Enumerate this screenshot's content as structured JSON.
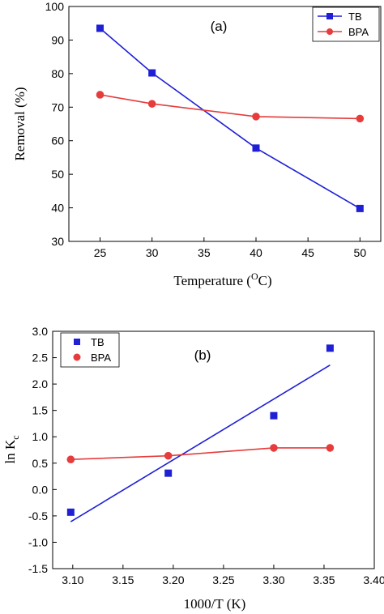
{
  "chart_data": [
    {
      "type": "line",
      "panel_label": "(a)",
      "xlabel": "Temperature (",
      "xlabel_sup": "O",
      "xlabel_suffix": "C)",
      "ylabel": "Removal (%)",
      "xlim": [
        22,
        52
      ],
      "ylim": [
        30,
        100
      ],
      "xticks": [
        25,
        30,
        35,
        40,
        45,
        50
      ],
      "yticks": [
        30,
        40,
        50,
        60,
        70,
        80,
        90,
        100
      ],
      "legend_position": "top-right",
      "series": [
        {
          "name": "TB",
          "color": "#1f1fd6",
          "marker": "square",
          "line": "connect",
          "x": [
            25,
            30,
            40,
            50
          ],
          "y": [
            93.5,
            80.2,
            57.8,
            39.8
          ]
        },
        {
          "name": "BPA",
          "color": "#e63c3c",
          "marker": "circle",
          "line": "smooth",
          "x": [
            25,
            30,
            40,
            50
          ],
          "y": [
            73.7,
            71.0,
            67.2,
            66.6
          ]
        }
      ]
    },
    {
      "type": "scatter",
      "panel_label": "(b)",
      "xlabel": "1000/T (K)",
      "ylabel": "ln K",
      "ylabel_sub": "c",
      "xlim": [
        3.08,
        3.4
      ],
      "ylim": [
        -1.5,
        3.0
      ],
      "xticks": [
        "3.10",
        "3.15",
        "3.20",
        "3.25",
        "3.30",
        "3.35",
        "3.40"
      ],
      "yticks": [
        "-1.5",
        "-1.0",
        "-0.5",
        "0.0",
        "0.5",
        "1.0",
        "1.5",
        "2.0",
        "2.5",
        "3.0"
      ],
      "legend_position": "top-left",
      "series": [
        {
          "name": "TB",
          "color": "#1f1fd6",
          "marker": "square",
          "x": [
            3.098,
            3.195,
            3.3,
            3.356
          ],
          "y": [
            -0.43,
            0.31,
            1.4,
            2.68
          ],
          "fit": {
            "x": [
              3.098,
              3.356
            ],
            "y": [
              -0.61,
              2.36
            ]
          }
        },
        {
          "name": "BPA",
          "color": "#e63c3c",
          "marker": "circle",
          "x": [
            3.098,
            3.195,
            3.3,
            3.356
          ],
          "y": [
            0.57,
            0.64,
            0.79,
            0.79
          ],
          "fit": {
            "x": [
              3.098,
              3.195,
              3.3,
              3.356
            ],
            "y": [
              0.57,
              0.64,
              0.79,
              0.79
            ]
          }
        }
      ]
    }
  ]
}
